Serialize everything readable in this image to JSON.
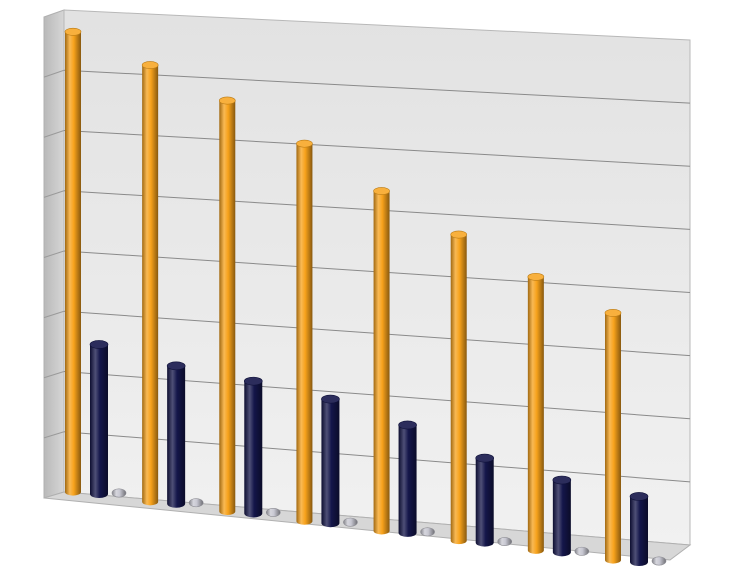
{
  "chart_data": {
    "type": "bar",
    "variant": "3d-cylinder",
    "categories": [
      "",
      "",
      "",
      "",
      "",
      "",
      "",
      ""
    ],
    "series": [
      {
        "values": [
          7.85,
          7.6,
          7.3,
          6.85,
          6.3,
          5.8,
          5.3,
          4.9
        ]
      },
      {
        "values": [
          2.55,
          2.4,
          2.35,
          2.25,
          2.0,
          1.6,
          1.4,
          1.3
        ]
      },
      {
        "values": [
          0.02,
          0.02,
          0.02,
          0.02,
          0.02,
          0.02,
          0.02,
          0.02
        ]
      }
    ],
    "ylim": [
      0,
      8
    ],
    "grid": true,
    "legend": "none"
  },
  "colors": {
    "series": [
      "#F7A21B",
      "#14164A",
      "#C8C8D2"
    ],
    "wall": "#EBEBEB",
    "side_wall": "#C6C6C6",
    "floor": "#D7D7D7",
    "gridline": "#8A8A8A"
  }
}
